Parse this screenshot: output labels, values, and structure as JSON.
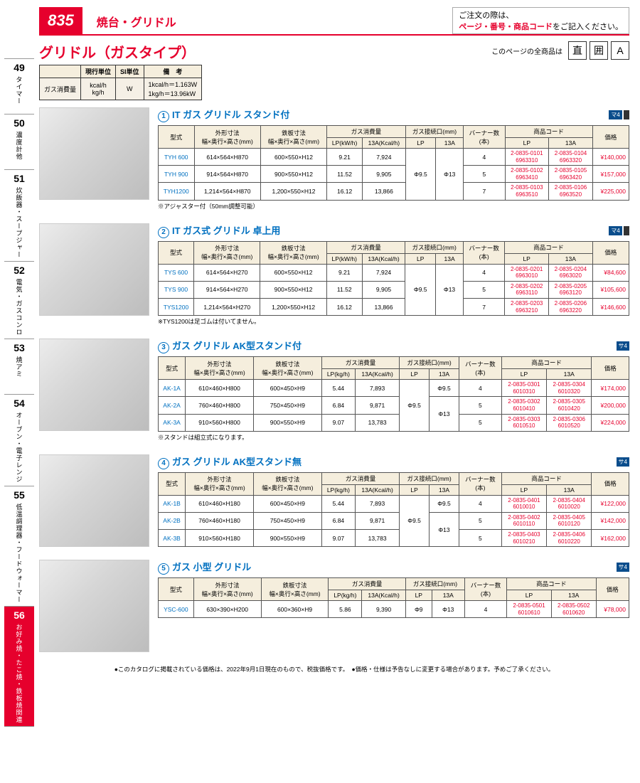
{
  "header": {
    "page_number": "835",
    "breadcrumb": "焼台・グリドル",
    "order_note_l1": "ご注文の際は、",
    "order_note_l2a": "ページ・番号・商品コード",
    "order_note_l2b": "をご記入ください。"
  },
  "subtitle": "グリドル（ガスタイプ）",
  "badges_txt": "このページの全商品は",
  "badges": [
    "直",
    "囲",
    "A"
  ],
  "sidebar": [
    {
      "num": "49",
      "label": "タイマー"
    },
    {
      "num": "50",
      "label": "濃度計他"
    },
    {
      "num": "51",
      "label": "炊飯器・スープジャー"
    },
    {
      "num": "52",
      "label": "電気・ガスコンロ"
    },
    {
      "num": "53",
      "label": "焼アミ"
    },
    {
      "num": "54",
      "label": "オーブン・電子レンジ"
    },
    {
      "num": "55",
      "label": "低温調理器・フードウォーマー"
    },
    {
      "num": "56",
      "label": "お好み焼・たこ焼・鉄板焼関連",
      "active": true
    }
  ],
  "unit_table": {
    "headers": [
      "",
      "現行単位",
      "SI単位",
      "備　考"
    ],
    "row_label": "ガス消費量",
    "c1a": "kcal/h",
    "c1b": "kg/h",
    "c2": "W",
    "c3a": "1kcal/h＝1.163W",
    "c3b": "1kg/h＝13.96kW"
  },
  "common_headers": {
    "model": "型式",
    "gaikei": "外形寸法",
    "gaikei_sub": "幅×奥行×高さ(mm)",
    "teppan": "鉄板寸法",
    "teppan_sub": "幅×奥行×高さ(mm)",
    "gas": "ガス消費量",
    "gas_lp": "LP(kg/h)",
    "gas_lp2": "LP(kW/h)",
    "gas_13a": "13A(Kcal/h)",
    "conn": "ガス接続口(mm)",
    "conn_lp": "LP",
    "conn_13a": "13A",
    "burner": "バーナー数",
    "burner_sub": "(本)",
    "code": "商品コード",
    "code_lp": "LP",
    "code_13a": "13A",
    "price": "価格"
  },
  "sections": [
    {
      "num": "①",
      "title": "IT ガス グリドル スタンド付",
      "tag": [
        "マ4",
        ""
      ],
      "lp_unit": "LP(kW/h)",
      "note": "※アジャスター付（50mm調整可能）",
      "conn_merge": {
        "lp": "Φ9.5",
        "a13": "Φ13"
      },
      "rows": [
        {
          "model": "TYH 600",
          "g": "614×564×H870",
          "t": "600×550×H12",
          "lp": "9.21",
          "a13": "7,924",
          "b": "4",
          "clp": [
            "2-0835-0101",
            "6963310"
          ],
          "c13": [
            "2-0835-0104",
            "6963320"
          ],
          "price": "¥140,000"
        },
        {
          "model": "TYH 900",
          "g": "914×564×H870",
          "t": "900×550×H12",
          "lp": "11.52",
          "a13": "9,905",
          "b": "5",
          "clp": [
            "2-0835-0102",
            "6963410"
          ],
          "c13": [
            "2-0835-0105",
            "6963420"
          ],
          "price": "¥157,000"
        },
        {
          "model": "TYH1200",
          "g": "1,214×564×H870",
          "t": "1,200×550×H12",
          "lp": "16.12",
          "a13": "13,866",
          "b": "7",
          "clp": [
            "2-0835-0103",
            "6963510"
          ],
          "c13": [
            "2-0835-0106",
            "6963520"
          ],
          "price": "¥225,000"
        }
      ]
    },
    {
      "num": "②",
      "title": "IT ガス式 グリドル 卓上用",
      "tag": [
        "マ4",
        ""
      ],
      "lp_unit": "LP(kW/h)",
      "note": "※TYS1200は足ゴムは付いてません。",
      "conn_merge": {
        "lp": "Φ9.5",
        "a13": "Φ13"
      },
      "rows": [
        {
          "model": "TYS 600",
          "g": "614×564×H270",
          "t": "600×550×H12",
          "lp": "9.21",
          "a13": "7,924",
          "b": "4",
          "clp": [
            "2-0835-0201",
            "6963010"
          ],
          "c13": [
            "2-0835-0204",
            "6963020"
          ],
          "price": "¥84,600"
        },
        {
          "model": "TYS 900",
          "g": "914×564×H270",
          "t": "900×550×H12",
          "lp": "11.52",
          "a13": "9,905",
          "b": "5",
          "clp": [
            "2-0835-0202",
            "6963110"
          ],
          "c13": [
            "2-0835-0205",
            "6963120"
          ],
          "price": "¥105,600"
        },
        {
          "model": "TYS1200",
          "g": "1,214×564×H270",
          "t": "1,200×550×H12",
          "lp": "16.12",
          "a13": "13,866",
          "b": "7",
          "clp": [
            "2-0835-0203",
            "6963210"
          ],
          "c13": [
            "2-0835-0206",
            "6963220"
          ],
          "price": "¥146,600"
        }
      ]
    },
    {
      "num": "③",
      "title": "ガス グリドル AK型スタンド付",
      "tag": [
        "サ4"
      ],
      "lp_unit": "LP(kg/h)",
      "note": "※スタンドは組立式になります。",
      "conn_merge": {
        "lp": "Φ9.5",
        "a13_row0": "Φ9.5",
        "a13_rest": "Φ13"
      },
      "rows": [
        {
          "model": "AK-1A",
          "g": "610×460×H800",
          "t": "600×450×H9",
          "lp": "5.44",
          "a13": "7,893",
          "b": "4",
          "conn13": "Φ9.5",
          "clp": [
            "2-0835-0301",
            "6010310"
          ],
          "c13": [
            "2-0835-0304",
            "6010320"
          ],
          "price": "¥174,000"
        },
        {
          "model": "AK-2A",
          "g": "760×460×H800",
          "t": "750×450×H9",
          "lp": "6.84",
          "a13": "9,871",
          "b": "5",
          "conn13": "",
          "clp": [
            "2-0835-0302",
            "6010410"
          ],
          "c13": [
            "2-0835-0305",
            "6010420"
          ],
          "price": "¥200,000"
        },
        {
          "model": "AK-3A",
          "g": "910×560×H800",
          "t": "900×550×H9",
          "lp": "9.07",
          "a13": "13,783",
          "b": "5",
          "conn13": "Φ13",
          "clp": [
            "2-0835-0303",
            "6010510"
          ],
          "c13": [
            "2-0835-0306",
            "6010520"
          ],
          "price": "¥224,000"
        }
      ]
    },
    {
      "num": "④",
      "title": "ガス グリドル AK型スタンド無",
      "tag": [
        "サ4"
      ],
      "lp_unit": "LP(kg/h)",
      "note": "",
      "conn_merge": {
        "lp": "Φ9.5",
        "a13_row0": "Φ9.5",
        "a13_rest": "Φ13"
      },
      "rows": [
        {
          "model": "AK-1B",
          "g": "610×460×H180",
          "t": "600×450×H9",
          "lp": "5.44",
          "a13": "7,893",
          "b": "4",
          "conn13": "Φ9.5",
          "clp": [
            "2-0835-0401",
            "6010010"
          ],
          "c13": [
            "2-0835-0404",
            "6010020"
          ],
          "price": "¥122,000"
        },
        {
          "model": "AK-2B",
          "g": "760×460×H180",
          "t": "750×450×H9",
          "lp": "6.84",
          "a13": "9,871",
          "b": "5",
          "conn13": "",
          "clp": [
            "2-0835-0402",
            "6010110"
          ],
          "c13": [
            "2-0835-0405",
            "6010120"
          ],
          "price": "¥142,000"
        },
        {
          "model": "AK-3B",
          "g": "910×560×H180",
          "t": "900×550×H9",
          "lp": "9.07",
          "a13": "13,783",
          "b": "5",
          "conn13": "Φ13",
          "clp": [
            "2-0835-0403",
            "6010210"
          ],
          "c13": [
            "2-0835-0406",
            "6010220"
          ],
          "price": "¥162,000"
        }
      ]
    },
    {
      "num": "⑤",
      "title": "ガス 小型 グリドル",
      "tag": [
        "サ4"
      ],
      "lp_unit": "LP(kg/h)",
      "note": "",
      "rows": [
        {
          "model": "YSC-600",
          "g": "630×390×H200",
          "t": "600×360×H9",
          "lp": "5.86",
          "a13": "9,390",
          "connlp": "Φ9",
          "conn13": "Φ13",
          "b": "4",
          "clp": [
            "2-0835-0501",
            "6010610"
          ],
          "c13": [
            "2-0835-0502",
            "6010620"
          ],
          "price": "¥78,000"
        }
      ]
    }
  ],
  "footer": "●このカタログに掲載されている価格は、2022年9月1日現在のもので、税抜価格です。　●価格・仕様は予告なしに変更する場合があります。予めご了承ください。"
}
